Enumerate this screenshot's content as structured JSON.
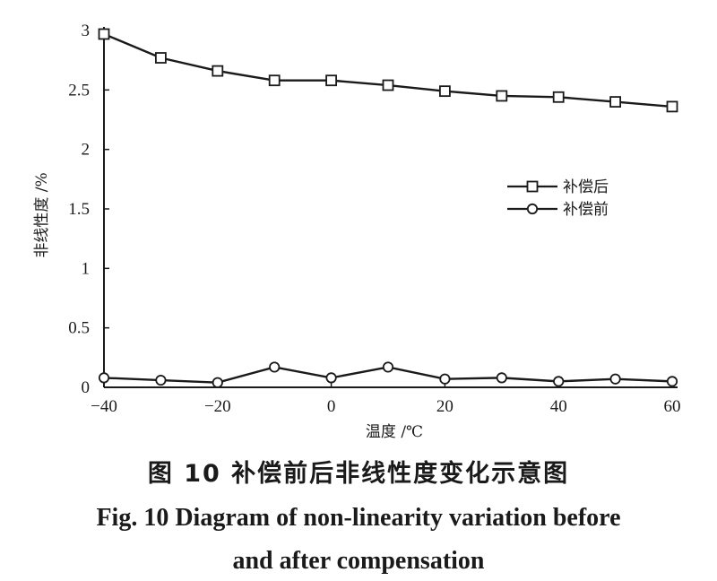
{
  "chart_data": {
    "type": "line",
    "xlabel": "温度 /℃",
    "ylabel": "非线性度 /%",
    "x": [
      -40,
      -30,
      -20,
      -10,
      0,
      10,
      20,
      30,
      40,
      50,
      60
    ],
    "xlim": [
      -40,
      60
    ],
    "ylim": [
      0,
      3
    ],
    "xticks": [
      "-40",
      "-20",
      "0",
      "20",
      "40",
      "60"
    ],
    "yticks": [
      "0",
      "0.5",
      "1",
      "1.5",
      "2",
      "2.5",
      "3"
    ],
    "legend_position": "right",
    "grid": false,
    "series": [
      {
        "name": "补偿后",
        "marker": "square",
        "values": [
          2.97,
          2.77,
          2.66,
          2.58,
          2.58,
          2.54,
          2.49,
          2.45,
          2.44,
          2.4,
          2.36
        ]
      },
      {
        "name": "补偿前",
        "marker": "circle",
        "values": [
          0.08,
          0.06,
          0.04,
          0.17,
          0.08,
          0.17,
          0.07,
          0.08,
          0.05,
          0.07,
          0.05
        ]
      }
    ]
  },
  "caption": {
    "cn": "图 10   补偿前后非线性度变化示意图",
    "en_line1": "Fig. 10  Diagram of non-linearity variation before",
    "en_line2": "and after compensation"
  }
}
